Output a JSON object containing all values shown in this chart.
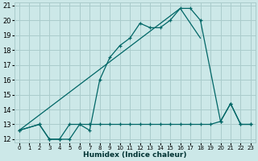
{
  "xlabel": "Humidex (Indice chaleur)",
  "bg_color": "#cce8e8",
  "grid_color": "#aacccc",
  "line_color": "#006666",
  "xlim": [
    -0.5,
    23.5
  ],
  "ylim": [
    11.8,
    21.2
  ],
  "xticks": [
    0,
    1,
    2,
    3,
    4,
    5,
    6,
    7,
    8,
    9,
    10,
    11,
    12,
    13,
    14,
    15,
    16,
    17,
    18,
    19,
    20,
    21,
    22,
    23
  ],
  "yticks": [
    12,
    13,
    14,
    15,
    16,
    17,
    18,
    19,
    20,
    21
  ],
  "series1_x": [
    0,
    2,
    3,
    4,
    5,
    6,
    7,
    8,
    9,
    10,
    11,
    12,
    13,
    14,
    15,
    16,
    17,
    18,
    20,
    21,
    22,
    23
  ],
  "series1_y": [
    12.6,
    13.0,
    12.0,
    12.0,
    13.0,
    13.0,
    12.6,
    16.0,
    17.5,
    18.3,
    18.8,
    19.8,
    19.5,
    19.5,
    20.0,
    20.8,
    20.8,
    20.0,
    13.2,
    14.4,
    13.0,
    13.0
  ],
  "series2_x": [
    0,
    16,
    18
  ],
  "series2_y": [
    12.6,
    20.8,
    18.8
  ],
  "series3_x": [
    0,
    2,
    3,
    4,
    5,
    6,
    7,
    8,
    9,
    10,
    11,
    12,
    13,
    14,
    15,
    16,
    17,
    18,
    19,
    20,
    21,
    22,
    23
  ],
  "series3_y": [
    12.6,
    13.0,
    12.0,
    12.0,
    12.0,
    13.0,
    13.0,
    13.0,
    13.0,
    13.0,
    13.0,
    13.0,
    13.0,
    13.0,
    13.0,
    13.0,
    13.0,
    13.0,
    13.0,
    13.2,
    14.4,
    13.0,
    13.0
  ]
}
